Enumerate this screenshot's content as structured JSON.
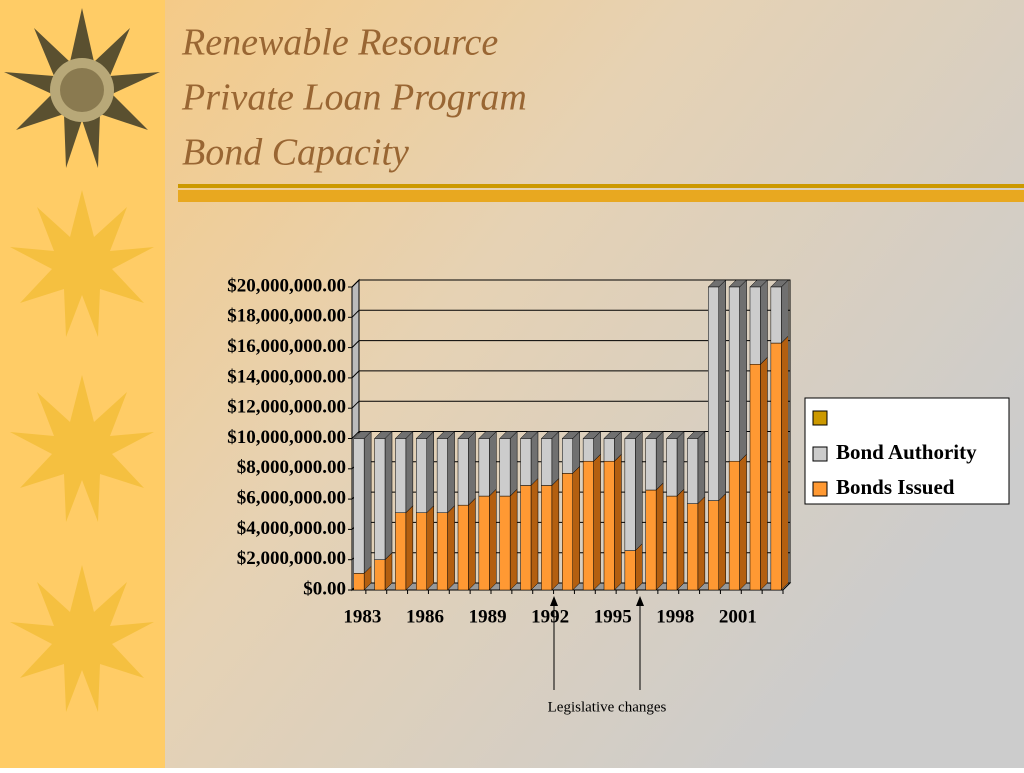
{
  "chart_data": {
    "type": "bar",
    "stacked": true,
    "title": [
      "Renewable Resource",
      "Private Loan Program",
      "Bond Capacity"
    ],
    "categories": [
      "1983",
      null,
      null,
      "1986",
      null,
      null,
      "1989",
      null,
      null,
      "1992",
      null,
      null,
      "1995",
      null,
      null,
      "1998",
      null,
      null,
      "2001",
      null,
      null
    ],
    "series": [
      {
        "name": "Bonds Issued",
        "color": "#ff9933",
        "values": [
          1100000,
          2000000,
          5100000,
          5100000,
          5100000,
          5600000,
          6200000,
          6200000,
          6900000,
          6900000,
          7700000,
          8500000,
          8500000,
          2600000,
          6600000,
          6200000,
          5700000,
          5900000,
          8500000,
          14900000,
          16300000
        ]
      },
      {
        "name": "Bond Authority",
        "color": "#cccccc",
        "values": [
          8900000,
          8000000,
          4900000,
          4900000,
          4900000,
          4400000,
          3800000,
          3800000,
          3100000,
          3100000,
          2300000,
          1500000,
          1500000,
          7400000,
          3400000,
          3800000,
          4300000,
          14100000,
          11500000,
          5100000,
          3700000
        ]
      }
    ],
    "ylim": [
      0,
      20000000
    ],
    "yticks": [
      {
        "value": 0,
        "label": "$0.00"
      },
      {
        "value": 2000000,
        "label": "$2,000,000.00"
      },
      {
        "value": 4000000,
        "label": "$4,000,000.00"
      },
      {
        "value": 6000000,
        "label": "$6,000,000.00"
      },
      {
        "value": 8000000,
        "label": "$8,000,000.00"
      },
      {
        "value": 10000000,
        "label": "$10,000,000.00"
      },
      {
        "value": 12000000,
        "label": "$12,000,000.00"
      },
      {
        "value": 14000000,
        "label": "$14,000,000.00"
      },
      {
        "value": 16000000,
        "label": "$16,000,000.00"
      },
      {
        "value": 18000000,
        "label": "$18,000,000.00"
      },
      {
        "value": 20000000,
        "label": "$20,000,000.00"
      }
    ],
    "grid": true,
    "legend": "right",
    "annotation": "Legislative changes"
  }
}
